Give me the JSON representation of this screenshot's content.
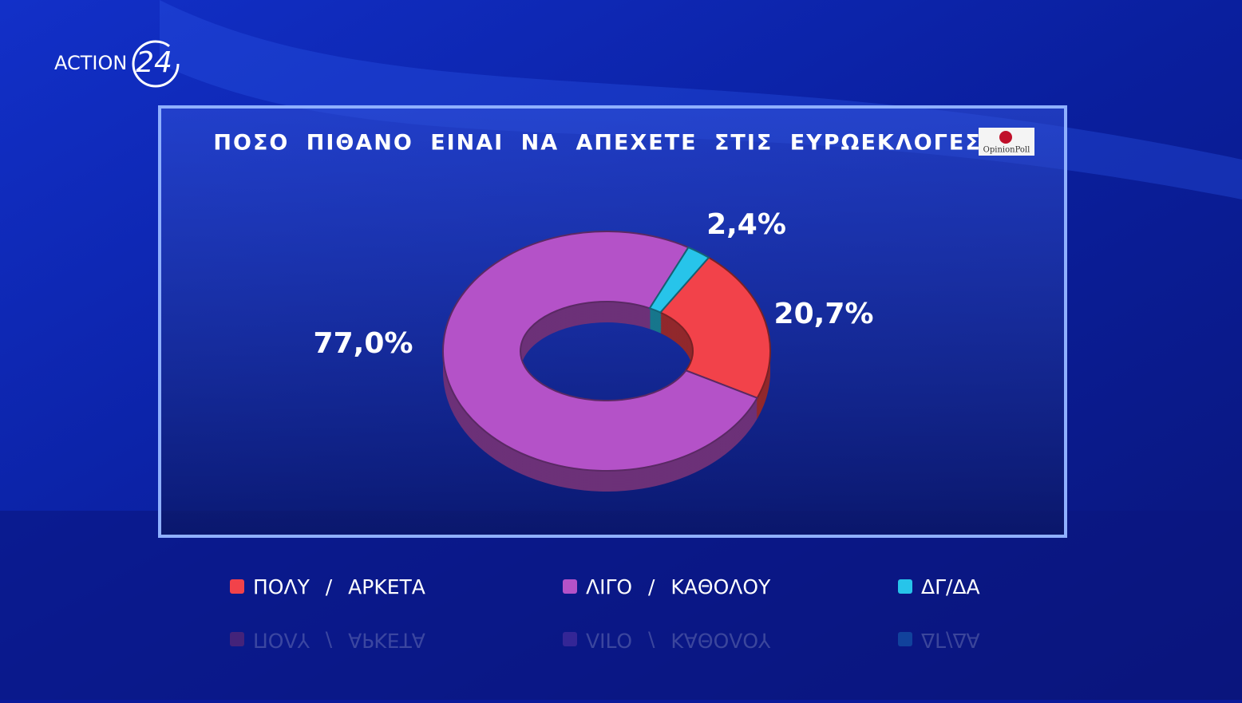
{
  "logo": {
    "channel": "ACTION",
    "number": "24"
  },
  "source": "OpinionPoll",
  "chart_data": {
    "type": "pie",
    "donut": true,
    "title": "ΠΟΣΟ ΠΙΘΑΝΟ ΕΙΝΑΙ ΝΑ ΑΠΕΧΕΤΕ ΣΤΙΣ ΕΥΡΩΕΚΛΟΓΕΣ;",
    "categories": [
      "ΠΟΛΥ / ΑΡΚΕΤΑ",
      "ΛΙΓΟ / ΚΑΘΟΛΟΥ",
      "ΔΓ/ΔΑ"
    ],
    "values": [
      20.7,
      77.0,
      2.4
    ],
    "value_labels": [
      "20,7%",
      "77,0%",
      "2,4%"
    ],
    "colors": [
      "#f2424a",
      "#b452c8",
      "#27c4ea"
    ]
  }
}
